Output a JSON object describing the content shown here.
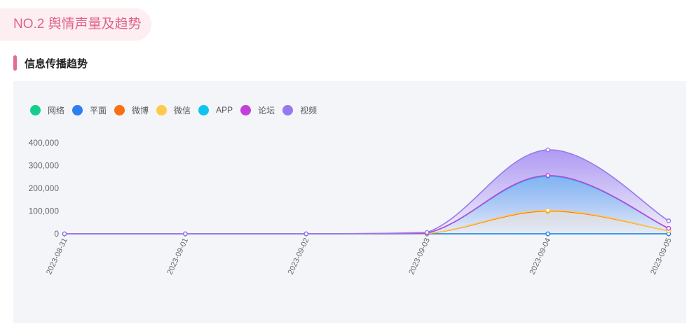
{
  "section": {
    "title": "NO.2 舆情声量及趋势"
  },
  "subsection": {
    "title": "信息传播趋势"
  },
  "chart_data": {
    "type": "area",
    "title": "",
    "xlabel": "",
    "ylabel": "",
    "categories": [
      "2023-08-31",
      "2023-09-01",
      "2023-09-02",
      "2023-09-03",
      "2023-09-04",
      "2023-09-05"
    ],
    "yticks": [
      "0",
      "100,000",
      "200,000",
      "300,000",
      "400,000"
    ],
    "ylim": [
      0,
      400000
    ],
    "stacked": true,
    "legend_position": "top-left",
    "grid": false,
    "series": [
      {
        "name": "网络",
        "color": "#13cf8e",
        "values": [
          0,
          0,
          0,
          0,
          0,
          0
        ]
      },
      {
        "name": "平面",
        "color": "#2d7ef2",
        "values": [
          0,
          0,
          0,
          0,
          0,
          0
        ]
      },
      {
        "name": "微博",
        "color": "#fa6f12",
        "values": [
          0,
          0,
          0,
          1000,
          100000,
          13000
        ]
      },
      {
        "name": "微信",
        "color": "#ffc94a",
        "values": [
          0,
          0,
          0,
          500,
          3000,
          0
        ]
      },
      {
        "name": "APP",
        "color": "#11c4ef",
        "values": [
          0,
          0,
          0,
          1500,
          150000,
          11000
        ]
      },
      {
        "name": "论坛",
        "color": "#c340d8",
        "values": [
          0,
          0,
          0,
          0,
          3000,
          0
        ]
      },
      {
        "name": "视频",
        "color": "#9579ee",
        "values": [
          0,
          0,
          0,
          3000,
          113000,
          33000
        ]
      }
    ]
  }
}
